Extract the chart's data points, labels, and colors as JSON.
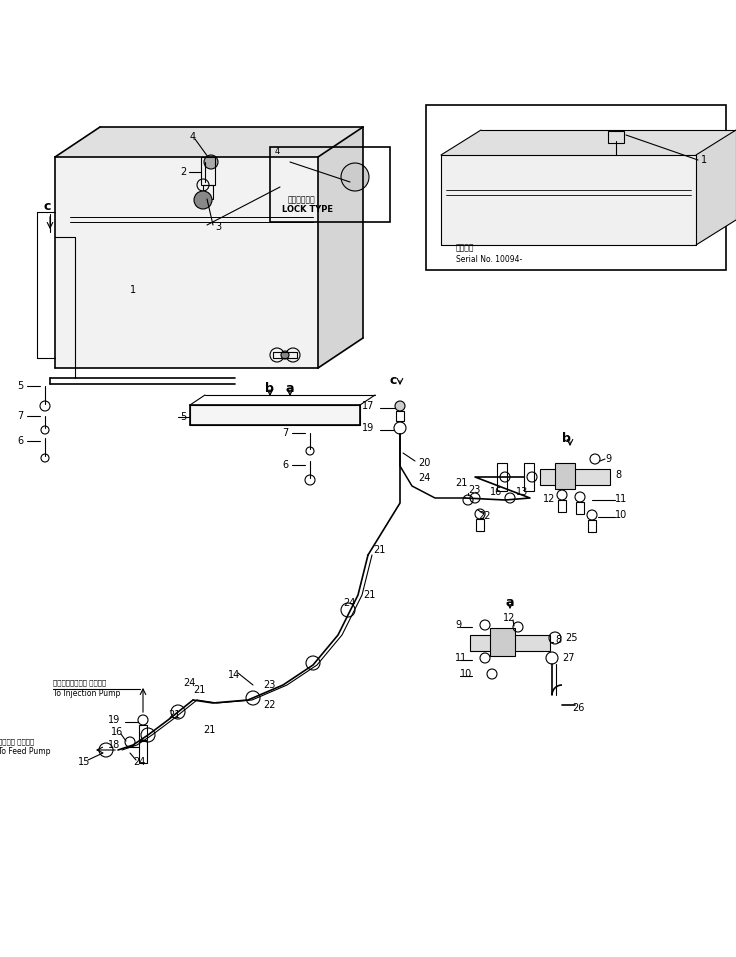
{
  "bg_color": "#ffffff",
  "lc": "#000000",
  "fig_width": 7.36,
  "fig_height": 9.57,
  "dpi": 100,
  "serial_text": "Serial No. 10094-",
  "serial_label": "適用号番",
  "lock_type_jp": "ロックタイプ",
  "lock_type_en": "LOCK TYPE",
  "injection_pump_jp": "インジェクション ポンプへ",
  "injection_pump_en": "To Injection Pump",
  "feed_pump_jp": "フィード ポンプへ",
  "feed_pump_en": "To Feed Pump"
}
